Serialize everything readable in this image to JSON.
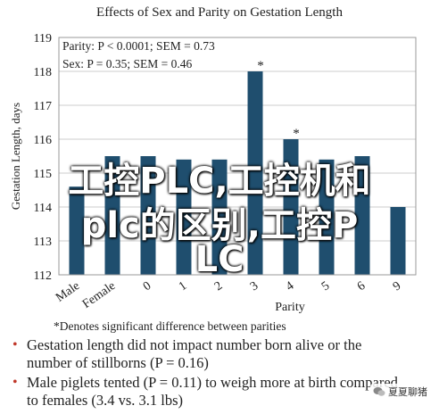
{
  "chart_data": {
    "type": "bar",
    "title": "Effects of Sex and Parity on Gestation Length",
    "xlabel": "Parity",
    "ylabel": "Gestation Length, days",
    "ylim": [
      112,
      119
    ],
    "yticks": [
      112,
      113,
      114,
      115,
      116,
      117,
      118,
      119
    ],
    "categories": [
      "Male",
      "Female",
      "0",
      "1",
      "2",
      "3",
      "4",
      "5",
      "6",
      "9"
    ],
    "values": [
      114.6,
      115.5,
      115.5,
      115.4,
      115.4,
      118.0,
      116.0,
      115.4,
      115.5,
      114.0
    ],
    "annotations": [
      "*",
      "*"
    ],
    "stats": {
      "parity": "Parity: P < 0.0001; SEM = 0.73",
      "sex": "Sex: P = 0.35; SEM = 0.46"
    },
    "footnote": "*Denotes significant difference between parities",
    "bar_color": "#1f4e6e",
    "grid": true
  },
  "bullets": [
    {
      "line1": "Gestation length did not impact number born alive or the",
      "line2": "number of stillborns (P = 0.16)"
    },
    {
      "line1": "Male piglets tented (P = 0.11) to weigh more at birth compared",
      "line2": "to females (3.4 vs. 3.1 lbs)"
    }
  ],
  "overlay": {
    "line1": "工控PLC,工控机和",
    "line2": "plc的区别,工控P",
    "line3": "LC"
  },
  "watermark": {
    "text": "夏夏聊猪",
    "icon": "wechat-icon"
  }
}
